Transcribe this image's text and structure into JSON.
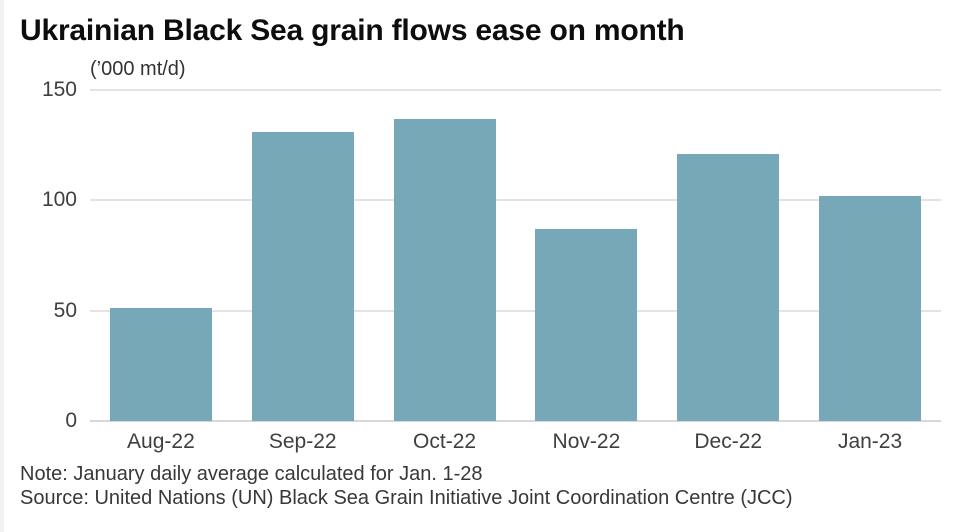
{
  "title": "Ukrainian Black Sea grain flows ease on month",
  "chart_data": {
    "type": "bar",
    "title": "Ukrainian Black Sea grain flows ease on month",
    "unit_label": "(’000 mt/d)",
    "categories": [
      "Aug-22",
      "Sep-22",
      "Oct-22",
      "Nov-22",
      "Dec-22",
      "Jan-23"
    ],
    "values": [
      51,
      131,
      137,
      87,
      121,
      102
    ],
    "xlabel": "",
    "ylabel": "'000 mt/d",
    "ylim": [
      0,
      150
    ],
    "yticks": [
      0,
      50,
      100,
      150
    ],
    "grid": "horizontal",
    "legend": "none",
    "bar_color": "#77a8b7"
  },
  "colors": {
    "bar": "#77a8b7",
    "gridline": "#e3e3e3",
    "baseline": "#d8d8d8",
    "title_text": "#0d0d0d",
    "axis_text": "#3f3f3f",
    "footer_text": "#383838"
  },
  "footer": {
    "note": "Note: January daily average calculated for Jan. 1-28",
    "source": "Source: United Nations (UN) Black Sea Grain Initiative Joint Coordination Centre (JCC)"
  }
}
